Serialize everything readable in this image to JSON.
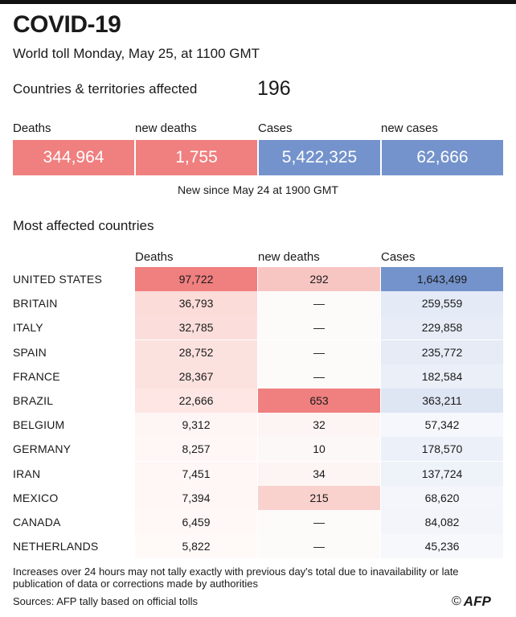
{
  "header": {
    "title": "COVID-19",
    "subtitle": "World toll Monday, May 25,  at 1100 GMT",
    "affected_label": "Countries & territories affected",
    "affected_value": "196"
  },
  "summary": {
    "labels": {
      "deaths": "Deaths",
      "new_deaths": "new deaths",
      "cases": "Cases",
      "new_cases": "new cases"
    },
    "values": {
      "deaths": "344,964",
      "new_deaths": "1,755",
      "cases": "5,422,325",
      "new_cases": "62,666"
    },
    "note": "New since  May 24 at 1900 GMT",
    "colors": {
      "deaths": "#f07f7f",
      "new_deaths": "#f07f7f",
      "cases": "#7493cc",
      "new_cases": "#7493cc"
    }
  },
  "table": {
    "title": "Most affected countries",
    "headers": {
      "deaths": "Deaths",
      "new_deaths": "new deaths",
      "cases": "Cases"
    },
    "rows": [
      {
        "country": "UNITED STATES",
        "deaths": "97,722",
        "new_deaths": "292",
        "cases": "1,643,499"
      },
      {
        "country": "BRITAIN",
        "deaths": "36,793",
        "new_deaths": "—",
        "cases": "259,559"
      },
      {
        "country": "ITALY",
        "deaths": "32,785",
        "new_deaths": "—",
        "cases": "229,858"
      },
      {
        "country": "SPAIN",
        "deaths": "28,752",
        "new_deaths": "—",
        "cases": "235,772"
      },
      {
        "country": "FRANCE",
        "deaths": "28,367",
        "new_deaths": "—",
        "cases": "182,584"
      },
      {
        "country": "BRAZIL",
        "deaths": "22,666",
        "new_deaths": "653",
        "cases": "363,211"
      },
      {
        "country": "BELGIUM",
        "deaths": "9,312",
        "new_deaths": "32",
        "cases": "57,342"
      },
      {
        "country": "GERMANY",
        "deaths": "8,257",
        "new_deaths": "10",
        "cases": "178,570"
      },
      {
        "country": "IRAN",
        "deaths": "7,451",
        "new_deaths": "34",
        "cases": "137,724"
      },
      {
        "country": "MEXICO",
        "deaths": "7,394",
        "new_deaths": "215",
        "cases": "68,620"
      },
      {
        "country": "CANADA",
        "deaths": "6,459",
        "new_deaths": "—",
        "cases": "84,082"
      },
      {
        "country": "NETHERLANDS",
        "deaths": "5,822",
        "new_deaths": "—",
        "cases": "45,236"
      }
    ],
    "cell_colors": {
      "deaths": [
        "#f07f7f",
        "#fbdcd9",
        "#fbdedb",
        "#fce2df",
        "#fce2df",
        "#fde6e3",
        "#fef6f5",
        "#fef7f6",
        "#fef7f6",
        "#fef7f6",
        "#fff8f7",
        "#fff9f8"
      ],
      "new_deaths": [
        "#f8c6c2",
        "#fdfafa",
        "#fdfafa",
        "#fdfafa",
        "#fdfafa",
        "#f07f7f",
        "#fdf5f4",
        "#fdf8f8",
        "#fdf5f4",
        "#f9d1cd",
        "#fdfafa",
        "#fdfafa"
      ],
      "cases": [
        "#7493cc",
        "#e4eaf6",
        "#e7ecf6",
        "#e6ebf6",
        "#ebeff8",
        "#dee5f3",
        "#f5f7fc",
        "#ecf0f8",
        "#eef2f9",
        "#f4f6fb",
        "#f3f5fb",
        "#f6f8fc"
      ]
    }
  },
  "footer": {
    "footnote": "Increases over 24 hours may not tally exactly with previous day's total due to inavailability or late publication of data or corrections made by authorities",
    "source": "Sources: AFP tally based on official tolls",
    "copyright": "©",
    "logo": "AFP"
  }
}
